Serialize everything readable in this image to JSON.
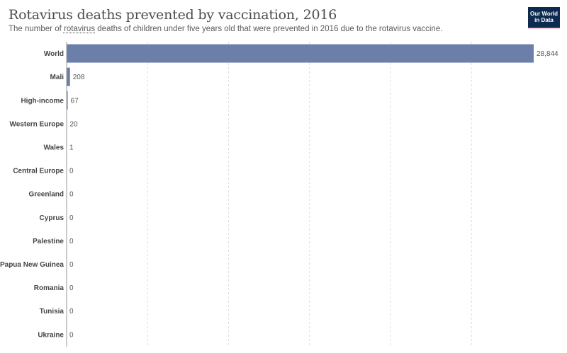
{
  "header": {
    "title": "Rotavirus deaths prevented by vaccination, 2016",
    "subtitle_pre": "The number of ",
    "subtitle_link": "rotavirus",
    "subtitle_post": " deaths of children under five years old that were prevented in 2016 due to the rotavirus vaccine.",
    "logo_line1": "Our World",
    "logo_line2": "in Data"
  },
  "colors": {
    "bar": "#6b7fa8",
    "grid": "#dddddd",
    "axis": "#999999"
  },
  "chart_data": {
    "type": "bar",
    "orientation": "horizontal",
    "title": "Rotavirus deaths prevented by vaccination, 2016",
    "categories": [
      "World",
      "Mali",
      "High-income",
      "Western Europe",
      "Wales",
      "Central Europe",
      "Greenland",
      "Cyprus",
      "Palestine",
      "Papua New Guinea",
      "Romania",
      "Tunisia",
      "Ukraine"
    ],
    "values": [
      28844,
      208,
      67,
      20,
      1,
      0,
      0,
      0,
      0,
      0,
      0,
      0,
      0
    ],
    "value_labels": [
      "28,844",
      "208",
      "67",
      "20",
      "1",
      "0",
      "0",
      "0",
      "0",
      "0",
      "0",
      "0",
      "0"
    ],
    "xlim": [
      0,
      28844
    ],
    "grid": true,
    "grid_ticks": [
      5000,
      10000,
      15000,
      20000,
      25000
    ]
  }
}
